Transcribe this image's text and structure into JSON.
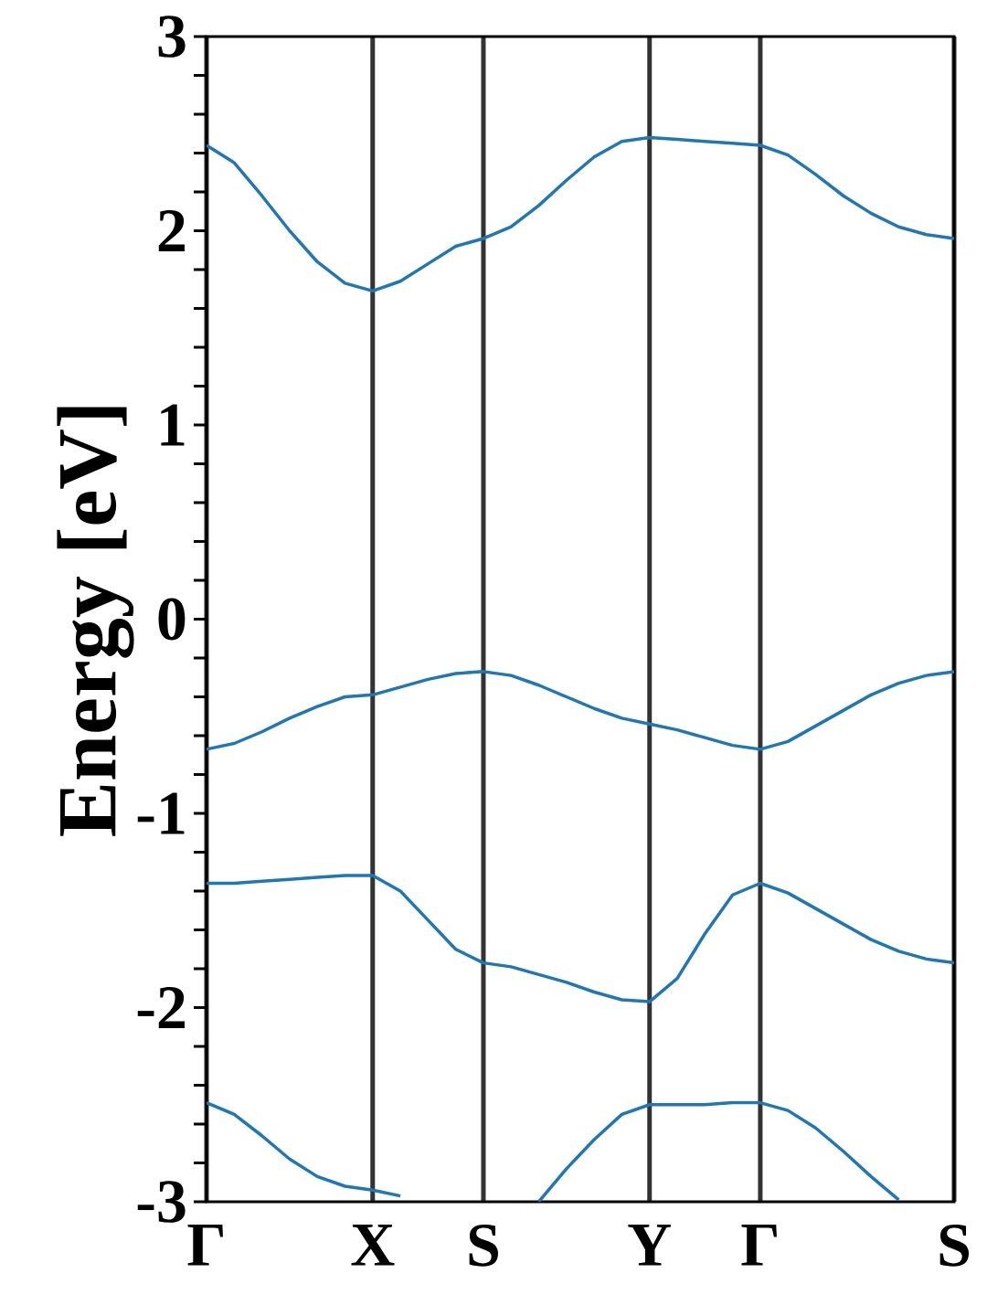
{
  "chart_data": {
    "type": "line",
    "ylabel": "Energy [eV]",
    "categories": [
      "Γ",
      null,
      null,
      null,
      null,
      null,
      "X",
      null,
      null,
      null,
      "S",
      null,
      null,
      null,
      null,
      null,
      "Y",
      null,
      null,
      null,
      "Γ",
      null,
      null,
      null,
      null,
      null,
      null,
      "S"
    ],
    "ylim": [
      -3,
      3
    ],
    "grid": "x",
    "yticks": [
      -3,
      {
        "value": -2.8,
        "label": null
      },
      {
        "value": -2.6,
        "label": null
      },
      {
        "value": -2.4,
        "label": null
      },
      {
        "value": -2.2,
        "label": null
      },
      -2,
      {
        "value": -1.8,
        "label": null
      },
      {
        "value": -1.6,
        "label": null
      },
      {
        "value": -1.4,
        "label": null
      },
      {
        "value": -1.2,
        "label": null
      },
      -1,
      {
        "value": -0.8,
        "label": null
      },
      {
        "value": -0.6,
        "label": null
      },
      {
        "value": -0.4,
        "label": null
      },
      {
        "value": -0.2,
        "label": null
      },
      0,
      {
        "value": 0.2,
        "label": null
      },
      {
        "value": 0.4,
        "label": null
      },
      {
        "value": 0.6,
        "label": null
      },
      {
        "value": 0.8,
        "label": null
      },
      1,
      {
        "value": 1.2,
        "label": null
      },
      {
        "value": 1.4,
        "label": null
      },
      {
        "value": 1.6,
        "label": null
      },
      {
        "value": 1.8,
        "label": null
      },
      2,
      {
        "value": 2.2,
        "label": null
      },
      {
        "value": 2.4,
        "label": null
      },
      {
        "value": 2.6,
        "label": null
      },
      {
        "value": 2.8,
        "label": null
      },
      3
    ],
    "series": [
      {
        "color": "#1f77b4",
        "values": [
          2.44,
          2.35,
          2.18,
          2.0,
          1.84,
          1.73,
          1.69,
          1.74,
          1.83,
          1.92,
          1.96,
          2.02,
          2.13,
          2.26,
          2.38,
          2.46,
          2.48,
          2.47,
          2.46,
          2.45,
          2.44,
          2.39,
          2.29,
          2.18,
          2.09,
          2.02,
          1.98,
          1.96
        ]
      },
      {
        "color": "#1f77b4",
        "values": [
          -0.67,
          -0.64,
          -0.58,
          -0.51,
          -0.45,
          -0.4,
          -0.39,
          -0.35,
          -0.31,
          -0.28,
          -0.27,
          -0.29,
          -0.34,
          -0.4,
          -0.46,
          -0.51,
          -0.54,
          -0.57,
          -0.61,
          -0.65,
          -0.67,
          -0.63,
          -0.55,
          -0.47,
          -0.39,
          -0.33,
          -0.29,
          -0.27
        ]
      },
      {
        "color": "#1f77b4",
        "values": [
          -1.36,
          -1.36,
          -1.35,
          -1.34,
          -1.33,
          -1.32,
          -1.32,
          -1.4,
          -1.55,
          -1.7,
          -1.77,
          -1.79,
          -1.83,
          -1.87,
          -1.92,
          -1.96,
          -1.97,
          -1.85,
          -1.62,
          -1.42,
          -1.36,
          -1.41,
          -1.49,
          -1.57,
          -1.65,
          -1.71,
          -1.75,
          -1.77
        ]
      },
      {
        "color": "#1f77b4",
        "values": [
          -2.49,
          -2.55,
          -2.66,
          -2.78,
          -2.87,
          -2.92,
          -2.94,
          -2.97,
          null,
          null,
          null,
          null,
          -3.0,
          -2.83,
          -2.68,
          -2.55,
          -2.5,
          -2.5,
          -2.5,
          -2.49,
          -2.49,
          -2.53,
          -2.62,
          -2.74,
          -2.87,
          -2.99,
          null,
          null
        ]
      }
    ]
  }
}
